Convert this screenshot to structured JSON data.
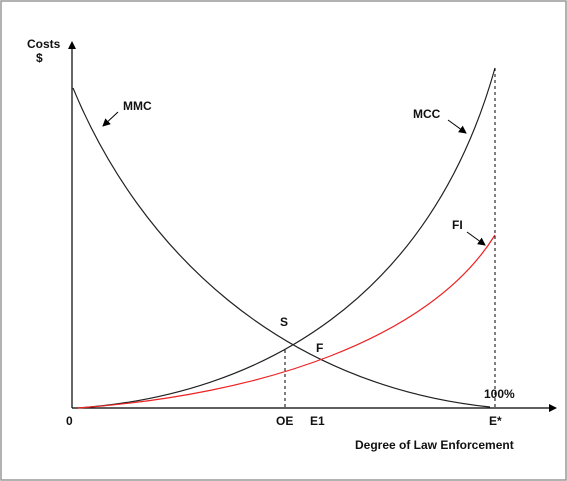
{
  "axes": {
    "y_label": [
      "Costs",
      "$"
    ],
    "x_label": "Degree of Law Enforcement",
    "origin": "0"
  },
  "x_points": [
    "OE",
    "E1",
    "E*"
  ],
  "curves": {
    "mmc": "MMC",
    "mcc": "MCC",
    "fi": "FI"
  },
  "points": {
    "s": "S",
    "f": "F"
  },
  "annotation": "100%"
}
